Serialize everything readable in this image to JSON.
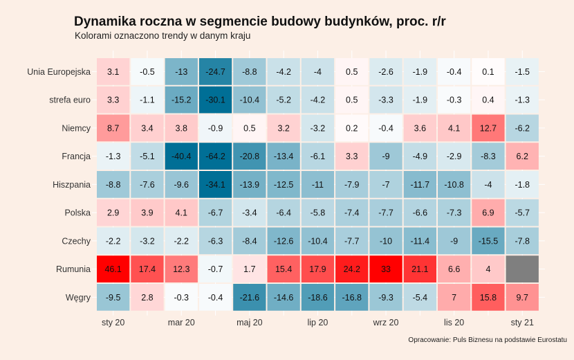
{
  "title": "Dynamika roczna w segmencie budowy budynków, proc. r/r",
  "subtitle": "Kolorami oznaczono trendy w danym kraju",
  "caption": "Opracowanie: Puls Biznesu na podstawie Eurostatu",
  "chart_data": {
    "type": "heatmap",
    "rows": [
      "Unia Europejska",
      "strefa euro",
      "Niemcy",
      "Francja",
      "Hiszpania",
      "Polska",
      "Czechy",
      "Rumunia",
      "Węgry"
    ],
    "columns": [
      "2020-01",
      "2020-02",
      "2020-03",
      "2020-04",
      "2020-05",
      "2020-06",
      "2020-07",
      "2020-08",
      "2020-09",
      "2020-10",
      "2020-11",
      "2020-12",
      "2021-01"
    ],
    "x_tick_labels": [
      "sty 20",
      "mar 20",
      "maj 20",
      "lip 20",
      "wrz 20",
      "lis 20",
      "sty 21"
    ],
    "values": [
      [
        3.1,
        -0.5,
        -13,
        -24.7,
        -8.8,
        -4.2,
        -4,
        0.5,
        -2.6,
        -1.9,
        -0.4,
        0.1,
        -1.5
      ],
      [
        3.3,
        -1.1,
        -15.2,
        -30.1,
        -10.4,
        -5.2,
        -4.2,
        0.5,
        -3.3,
        -1.9,
        -0.3,
        0.4,
        -1.3
      ],
      [
        8.7,
        3.4,
        3.8,
        -0.9,
        0.5,
        3.2,
        -3.2,
        0.2,
        -0.4,
        3.6,
        4.1,
        12.7,
        -6.2
      ],
      [
        -1.3,
        -5.1,
        -40.4,
        -64.2,
        -20.8,
        -13.4,
        -6.1,
        3.3,
        -9,
        -4.9,
        -2.9,
        -8.3,
        6.2
      ],
      [
        -8.8,
        -7.6,
        -9.6,
        -34.1,
        -13.9,
        -12.5,
        -11,
        -7.9,
        -7,
        -11.7,
        -10.8,
        -4,
        -1.8
      ],
      [
        2.9,
        3.9,
        4.1,
        -6.7,
        -3.4,
        -6.4,
        -5.8,
        -7.4,
        -7.7,
        -6.6,
        -7.3,
        6.9,
        -5.7
      ],
      [
        -2.2,
        -3.2,
        -2.2,
        -6.3,
        -8.4,
        -12.6,
        -10.4,
        -7.7,
        -10,
        -11.4,
        -9,
        -15.5,
        -7.8
      ],
      [
        46.1,
        17.4,
        12.3,
        -0.7,
        1.7,
        15.4,
        17.9,
        24.2,
        33,
        21.1,
        6.6,
        4,
        null
      ],
      [
        -9.5,
        2.8,
        -0.3,
        -0.4,
        -21.6,
        -14.6,
        -18.6,
        -16.8,
        -9.3,
        -5.4,
        7,
        15.8,
        9.7
      ]
    ],
    "missing_color": "#7f7f7f",
    "colors": {
      "negative": "#006f96",
      "neutral": "#ffffff",
      "positive": "#ff0000"
    }
  }
}
